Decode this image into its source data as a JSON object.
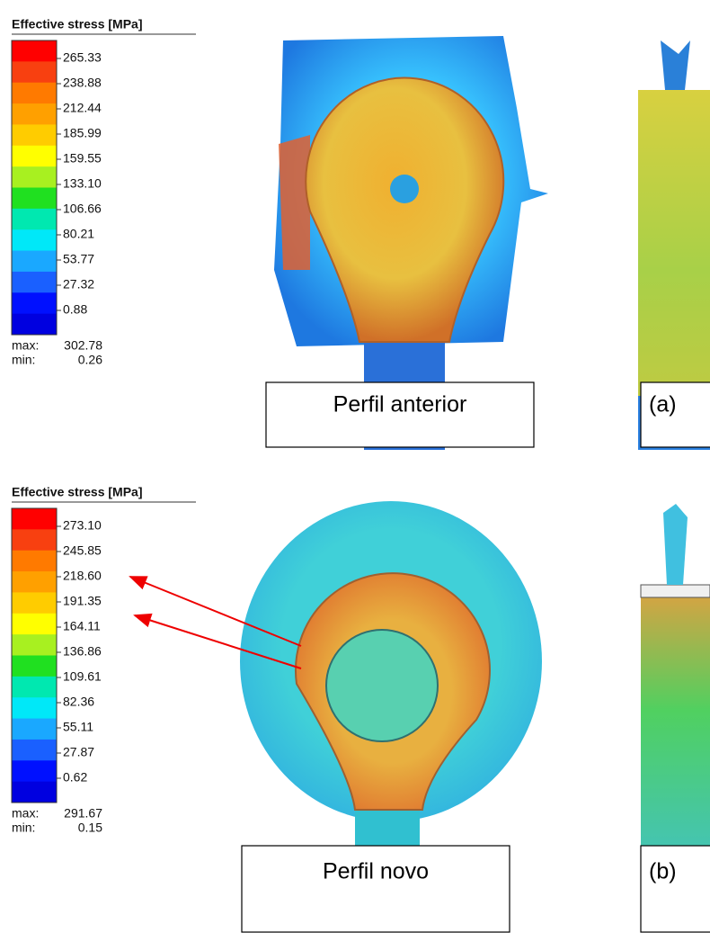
{
  "panels": [
    {
      "legend_title": "Effective stress [MPa]",
      "labels": [
        "265.33",
        "238.88",
        "212.44",
        "185.99",
        "159.55",
        "133.10",
        "106.66",
        "80.21",
        "53.77",
        "27.32",
        "0.88"
      ],
      "max_label": "max:",
      "max": "302.78",
      "min_label": "min:",
      "min": "0.26",
      "caption": "Perfil anterior",
      "tag": "(a)"
    },
    {
      "legend_title": "Effective stress [MPa]",
      "labels": [
        "273.10",
        "245.85",
        "218.60",
        "191.35",
        "164.11",
        "136.86",
        "109.61",
        "82.36",
        "55.11",
        "27.87",
        "0.62"
      ],
      "max_label": "max:",
      "max": "291.67",
      "min_label": "min:",
      "min": "0.15",
      "caption": "Perfil novo",
      "tag": "(b)"
    }
  ]
}
